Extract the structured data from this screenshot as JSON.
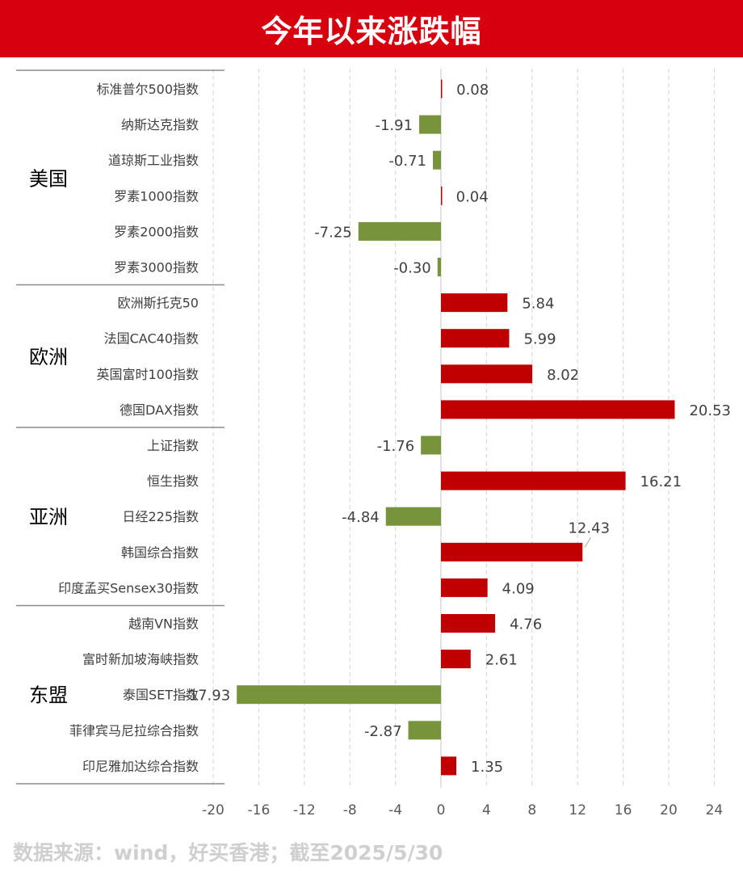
{
  "header": {
    "title": "今年以来涨跌幅"
  },
  "source": "数据来源：wind，好买香港；截至2025/5/30",
  "colors": {
    "positive": "#c00000",
    "negative": "#77933c",
    "header_bg": "#d7000f"
  },
  "chart_data": {
    "type": "bar",
    "orientation": "horizontal",
    "title": "今年以来涨跌幅",
    "xlabel": "",
    "ylabel": "",
    "xlim": [
      -20,
      24
    ],
    "xticks": [
      "-20",
      "-16",
      "-12",
      "-8",
      "-4",
      "0",
      "4",
      "8",
      "12",
      "16",
      "20",
      "24"
    ],
    "grid": true,
    "groups": [
      {
        "name": "美国",
        "count": 6
      },
      {
        "name": "欧洲",
        "count": 4
      },
      {
        "name": "亚洲",
        "count": 5
      },
      {
        "name": "东盟",
        "count": 5
      }
    ],
    "categories": [
      "标准普尔500指数",
      "纳斯达克指数",
      "道琼斯工业指数",
      "罗素1000指数",
      "罗素2000指数",
      "罗素3000指数",
      "欧洲斯托克50",
      "法国CAC40指数",
      "英国富时100指数",
      "德国DAX指数",
      "上证指数",
      "恒生指数",
      "日经225指数",
      "韩国综合指数",
      "印度孟买Sensex30指数",
      "越南VN指数",
      "富时新加坡海峡指数",
      "泰国SET指数",
      "菲律宾马尼拉综合指数",
      "印尼雅加达综合指数"
    ],
    "values": [
      0.08,
      -1.91,
      -0.71,
      0.04,
      -7.25,
      -0.3,
      5.84,
      5.99,
      8.02,
      20.53,
      -1.76,
      16.21,
      -4.84,
      12.43,
      4.09,
      4.76,
      2.61,
      -17.93,
      -2.87,
      1.35
    ],
    "data_labels": [
      "0.08",
      "-1.91",
      "-0.71",
      "0.04",
      "-7.25",
      "-0.30",
      "5.84",
      "5.99",
      "8.02",
      "20.53",
      "-1.76",
      "16.21",
      "-4.84",
      "12.43",
      "4.09",
      "4.76",
      "2.61",
      "-17.93",
      "-2.87",
      "1.35"
    ]
  }
}
